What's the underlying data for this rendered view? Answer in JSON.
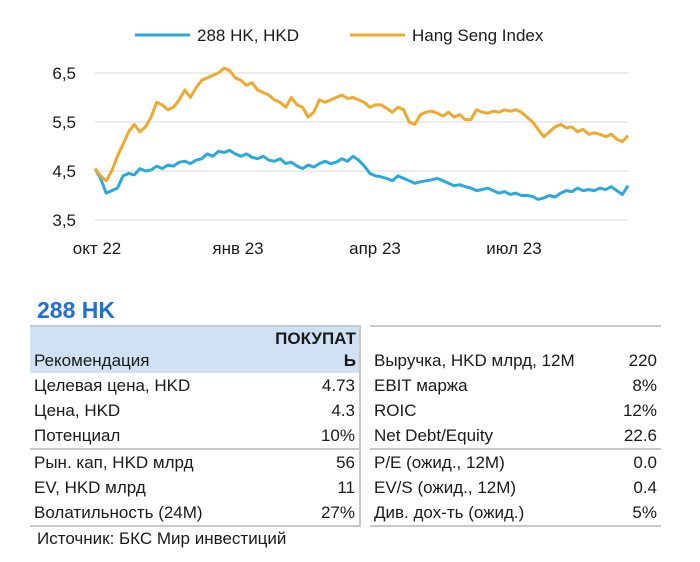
{
  "chart_data": {
    "type": "line",
    "x_axis": {
      "tick_labels": [
        "окт 22",
        "янв 23",
        "апр 23",
        "июл 23"
      ]
    },
    "y_axis": {
      "tick_labels": [
        "6,5",
        "5,5",
        "4,5",
        "3,5"
      ],
      "ylim": [
        3.5,
        6.8
      ],
      "ticks": [
        6.5,
        5.5,
        4.5,
        3.5
      ]
    },
    "grid": "horizontal",
    "legend_position": "top",
    "series": [
      {
        "name": "288 HK, HKD",
        "color": "#2aa9dc",
        "values": [
          4.55,
          4.35,
          4.05,
          4.1,
          4.15,
          4.4,
          4.45,
          4.42,
          4.55,
          4.5,
          4.52,
          4.6,
          4.55,
          4.62,
          4.6,
          4.68,
          4.7,
          4.65,
          4.72,
          4.75,
          4.85,
          4.8,
          4.9,
          4.88,
          4.92,
          4.85,
          4.8,
          4.85,
          4.78,
          4.75,
          4.8,
          4.72,
          4.7,
          4.75,
          4.65,
          4.68,
          4.6,
          4.55,
          4.62,
          4.58,
          4.65,
          4.7,
          4.65,
          4.68,
          4.75,
          4.7,
          4.8,
          4.72,
          4.6,
          4.45,
          4.4,
          4.38,
          4.35,
          4.3,
          4.4,
          4.35,
          4.3,
          4.25,
          4.28,
          4.3,
          4.32,
          4.35,
          4.3,
          4.25,
          4.2,
          4.22,
          4.18,
          4.15,
          4.1,
          4.12,
          4.15,
          4.1,
          4.05,
          4.08,
          4.02,
          4.05,
          4.0,
          4.0,
          3.98,
          3.92,
          3.95,
          4.0,
          3.97,
          4.05,
          4.1,
          4.08,
          4.15,
          4.1,
          4.12,
          4.1,
          4.15,
          4.12,
          4.18,
          4.1,
          4.02,
          4.2
        ]
      },
      {
        "name": "Hang Seng Index",
        "color": "#f0a92d",
        "values": [
          4.55,
          4.4,
          4.3,
          4.5,
          4.8,
          5.05,
          5.3,
          5.45,
          5.3,
          5.4,
          5.6,
          5.9,
          5.85,
          5.75,
          5.8,
          5.95,
          6.15,
          6.0,
          6.2,
          6.35,
          6.4,
          6.45,
          6.5,
          6.6,
          6.55,
          6.4,
          6.35,
          6.25,
          6.3,
          6.15,
          6.1,
          6.05,
          5.95,
          5.9,
          5.8,
          6.0,
          5.85,
          5.8,
          5.6,
          5.7,
          5.95,
          5.9,
          5.95,
          6.0,
          6.05,
          5.98,
          6.0,
          5.95,
          5.9,
          5.8,
          5.85,
          5.85,
          5.78,
          5.7,
          5.8,
          5.75,
          5.5,
          5.45,
          5.65,
          5.7,
          5.72,
          5.68,
          5.62,
          5.7,
          5.6,
          5.65,
          5.55,
          5.55,
          5.75,
          5.7,
          5.68,
          5.72,
          5.7,
          5.75,
          5.72,
          5.75,
          5.7,
          5.6,
          5.5,
          5.35,
          5.2,
          5.3,
          5.4,
          5.45,
          5.38,
          5.4,
          5.3,
          5.35,
          5.25,
          5.28,
          5.25,
          5.2,
          5.25,
          5.15,
          5.1,
          5.22
        ]
      }
    ]
  },
  "stock": {
    "title": "288 HK",
    "rows": [
      {
        "left_label": "Рекомендация",
        "left_value": "ПОКУПАТЬ",
        "right_label": "Выручка, HKD млрд, 12M",
        "right_value": "220"
      },
      {
        "left_label": "Целевая цена, HKD",
        "left_value": "4.73",
        "right_label": "EBIT маржа",
        "right_value": "8%"
      },
      {
        "left_label": "Цена, HKD",
        "left_value": "4.3",
        "right_label": "ROIC",
        "right_value": "12%"
      },
      {
        "left_label": "Потенциал",
        "left_value": "10%",
        "right_label": "Net Debt/Equity",
        "right_value": "22.6"
      },
      {
        "left_label": "Рын. кап, HKD млрд",
        "left_value": "56",
        "right_label": "P/E (ожид., 12M)",
        "right_value": "0.0"
      },
      {
        "left_label": "EV, HKD млрд",
        "left_value": "11",
        "right_label": "EV/S (ожид., 12M)",
        "right_value": "0.4"
      },
      {
        "left_label": "Волатильность (24M)",
        "left_value": "27%",
        "right_label": "Див. дох-ть (ожид.)",
        "right_value": "5%"
      }
    ],
    "source": "Источник: БКС Мир инвестиций"
  }
}
